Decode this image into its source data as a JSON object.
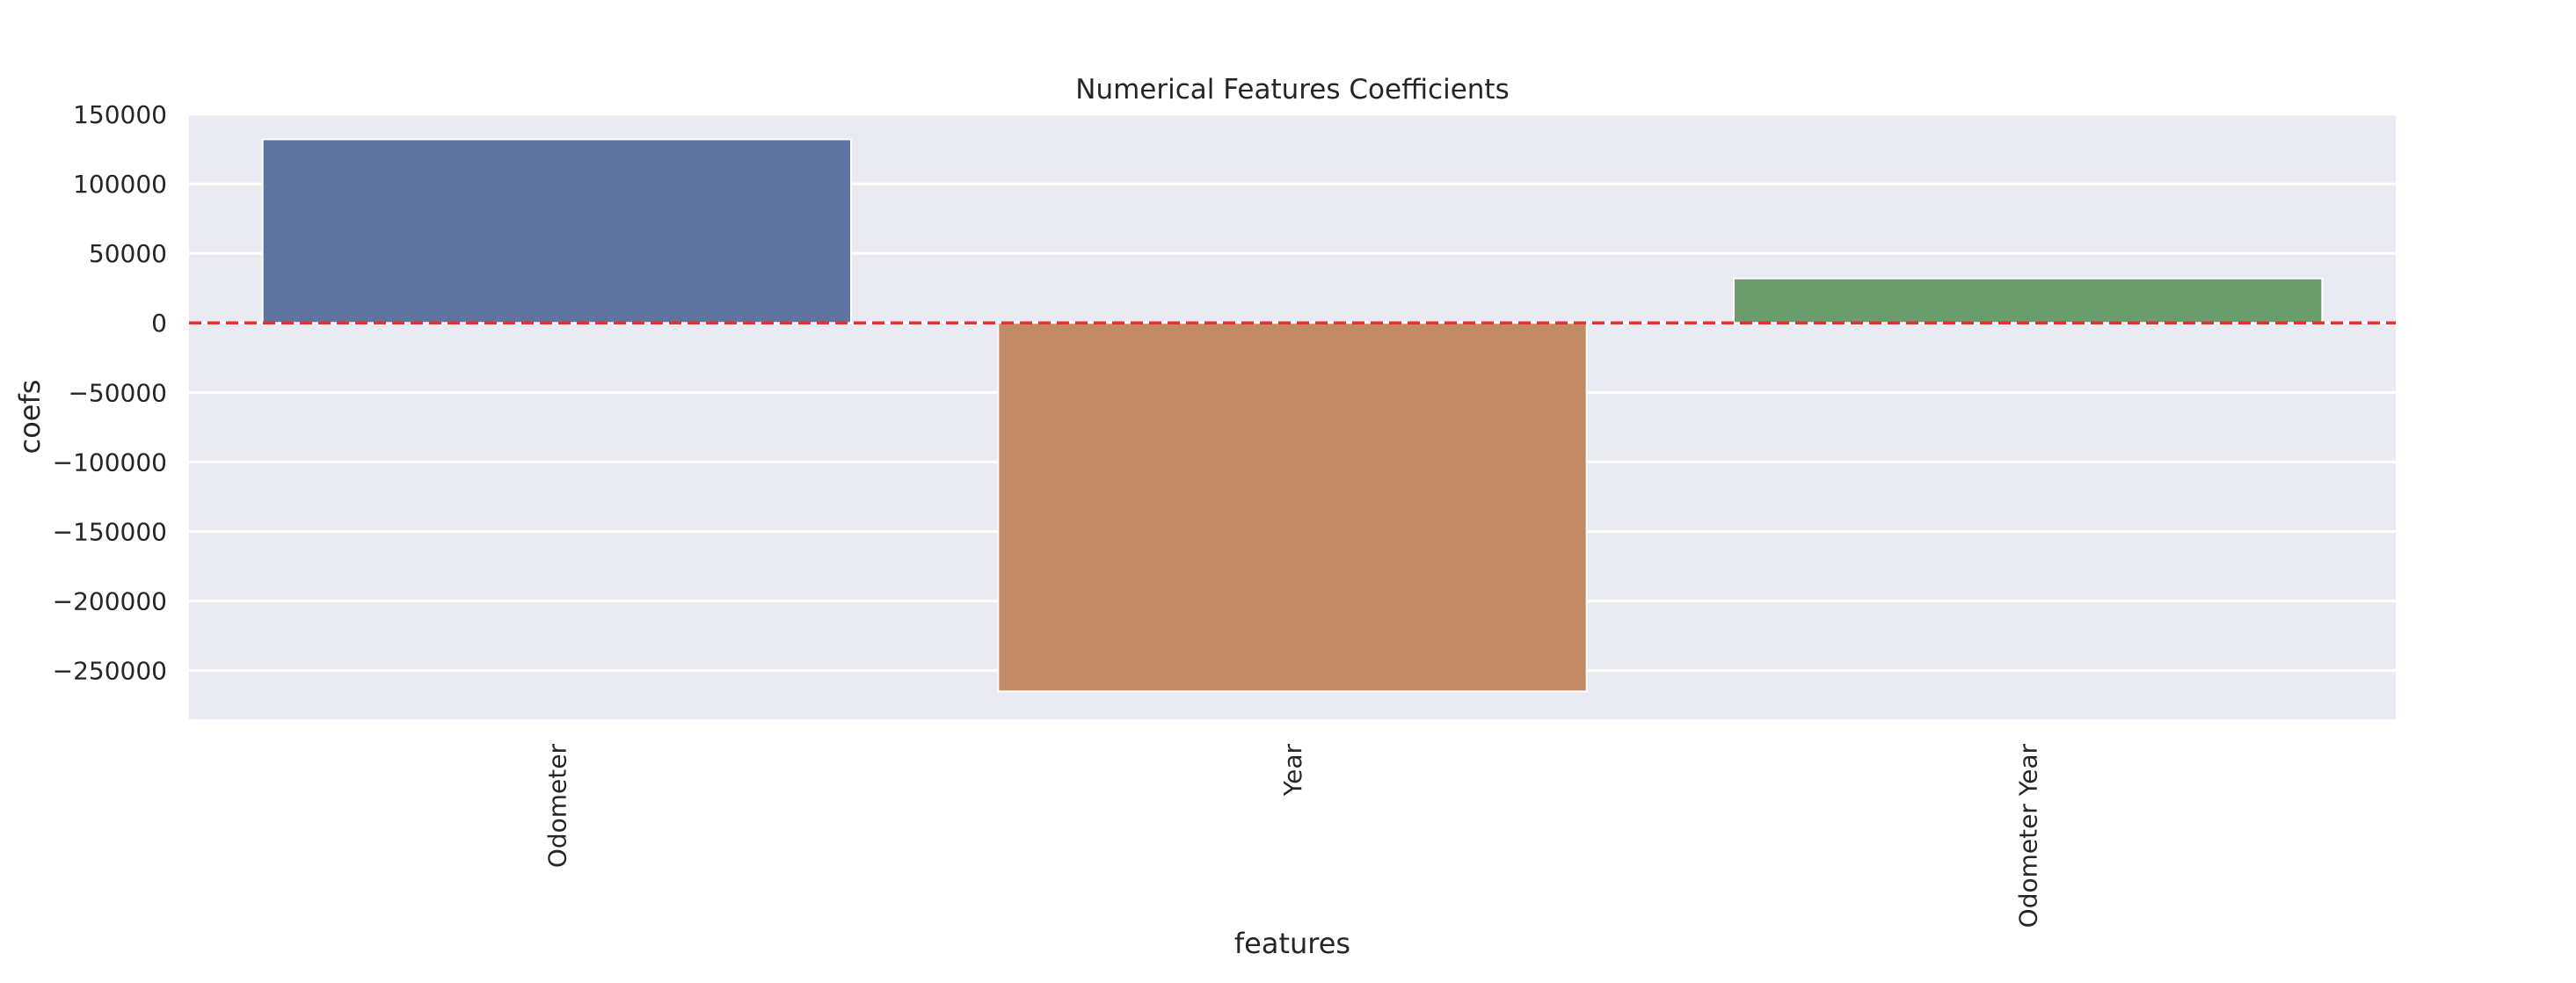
{
  "chart_data": {
    "type": "bar",
    "title": "Numerical Features Coefficients",
    "xlabel": "features",
    "ylabel": "coefs",
    "categories": [
      "Odometer",
      "Year",
      "Odometer Year"
    ],
    "values": [
      132000,
      -265000,
      32000
    ],
    "ylim": [
      -285000,
      150000
    ],
    "yticks": [
      150000,
      100000,
      50000,
      0,
      -50000,
      -100000,
      -150000,
      -200000,
      -250000
    ],
    "ytick_labels": [
      "150000",
      "100000",
      "50000",
      "0",
      "−50000",
      "−100000",
      "−150000",
      "−200000",
      "−250000"
    ],
    "grid": true,
    "legend": "none",
    "reference_line": {
      "y": 0,
      "style": "dashed"
    },
    "colors": {
      "bars": [
        "#5f74a0",
        "#c28a66",
        "#6a9c6e"
      ],
      "plot_background": "#eaeaf2",
      "grid": "#ffffff",
      "reference_line": "#e8312f"
    }
  }
}
